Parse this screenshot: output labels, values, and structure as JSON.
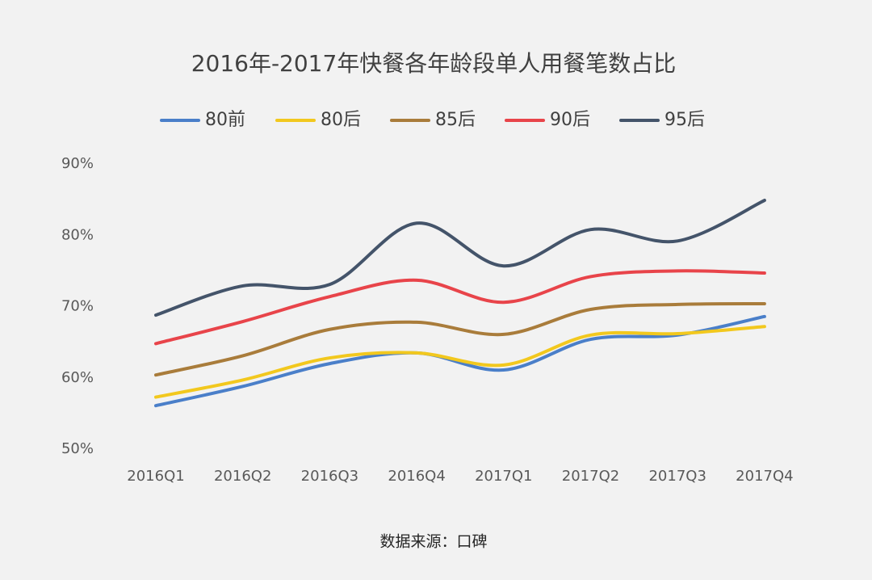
{
  "chart_data": {
    "type": "line",
    "title": "2016年-2017年快餐各年龄段单人用餐笔数占比",
    "source": "数据来源：口碑",
    "categories": [
      "2016Q1",
      "2016Q2",
      "2016Q3",
      "2016Q4",
      "2017Q1",
      "2017Q2",
      "2017Q3",
      "2017Q4"
    ],
    "series": [
      {
        "name": "80前",
        "color": "#4a7fc9",
        "values": [
          56.1,
          58.8,
          62.0,
          63.5,
          61.1,
          65.4,
          66.0,
          68.6
        ]
      },
      {
        "name": "80后",
        "color": "#f2c81e",
        "values": [
          57.3,
          59.7,
          62.8,
          63.5,
          61.8,
          66.0,
          66.2,
          67.2
        ]
      },
      {
        "name": "85后",
        "color": "#a97c3b",
        "values": [
          60.4,
          63.1,
          66.8,
          67.8,
          66.1,
          69.6,
          70.3,
          70.4
        ]
      },
      {
        "name": "90后",
        "color": "#e8444a",
        "values": [
          64.8,
          67.9,
          71.4,
          73.7,
          70.6,
          74.2,
          75.0,
          74.7
        ]
      },
      {
        "name": "95后",
        "color": "#44546a",
        "values": [
          68.8,
          72.9,
          73.1,
          81.7,
          75.7,
          80.8,
          79.2,
          84.9
        ]
      }
    ],
    "ylim": [
      50,
      90
    ],
    "yticks": [
      {
        "value": 50,
        "label": "50%"
      },
      {
        "value": 60,
        "label": "60%"
      },
      {
        "value": 70,
        "label": "70%"
      },
      {
        "value": 80,
        "label": "80%"
      },
      {
        "value": 90,
        "label": "90%"
      }
    ],
    "legend": "top",
    "grid": false,
    "smooth": true
  }
}
